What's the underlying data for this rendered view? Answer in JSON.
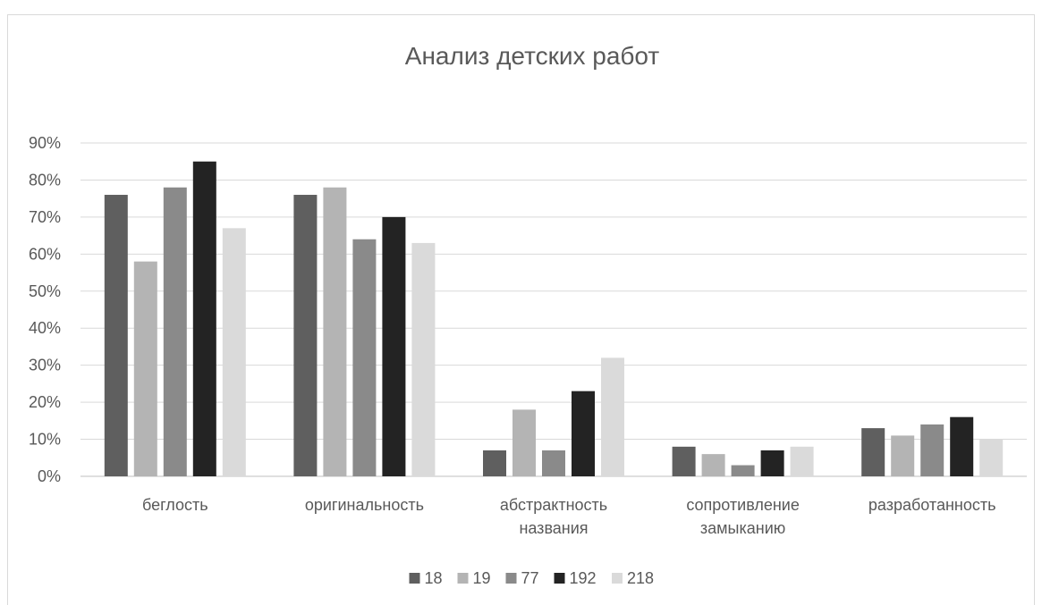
{
  "chart_data": {
    "type": "bar",
    "title": "Анализ детских работ",
    "xlabel": "",
    "ylabel": "",
    "ylim": [
      0,
      0.9
    ],
    "yticks": [
      0,
      0.1,
      0.2,
      0.3,
      0.4,
      0.5,
      0.6,
      0.7,
      0.8,
      0.9
    ],
    "ytick_labels": [
      "0%",
      "10%",
      "20%",
      "30%",
      "40%",
      "50%",
      "60%",
      "70%",
      "80%",
      "90%"
    ],
    "grid": true,
    "legend": "bottom",
    "categories": [
      [
        "беглость"
      ],
      [
        "оригинальность"
      ],
      [
        "абстрактность",
        "названия"
      ],
      [
        "сопротивление",
        "замыканию"
      ],
      [
        "разработанность"
      ]
    ],
    "series": [
      {
        "name": "18",
        "color": "#5f5f5f",
        "values": [
          0.76,
          0.76,
          0.07,
          0.08,
          0.13
        ]
      },
      {
        "name": "19",
        "color": "#b4b4b4",
        "values": [
          0.58,
          0.78,
          0.18,
          0.06,
          0.11
        ]
      },
      {
        "name": "77",
        "color": "#8a8a8a",
        "values": [
          0.78,
          0.64,
          0.07,
          0.03,
          0.14
        ]
      },
      {
        "name": "192",
        "color": "#232323",
        "values": [
          0.85,
          0.7,
          0.23,
          0.07,
          0.16
        ]
      },
      {
        "name": "218",
        "color": "#dadada",
        "values": [
          0.67,
          0.63,
          0.32,
          0.08,
          0.1
        ]
      }
    ]
  }
}
